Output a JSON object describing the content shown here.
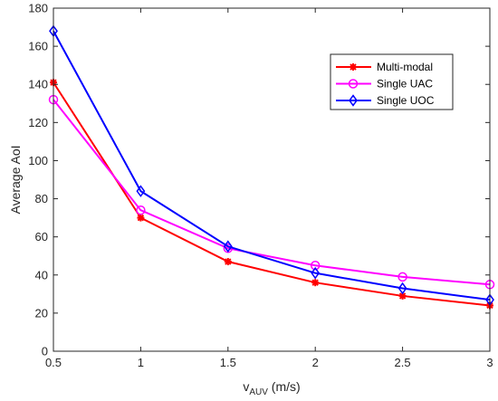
{
  "chart_data": {
    "type": "line",
    "xlabel_main": "v",
    "xlabel_sub": "AUV",
    "xlabel_unit": " (m/s)",
    "ylabel": "Average AoI",
    "xlim": [
      0.5,
      3
    ],
    "ylim": [
      0,
      180
    ],
    "x_ticks": [
      "0.5",
      "1",
      "1.5",
      "2",
      "2.5",
      "3"
    ],
    "y_ticks": [
      "0",
      "20",
      "40",
      "60",
      "80",
      "100",
      "120",
      "140",
      "160",
      "180"
    ],
    "grid": false,
    "legend_position": "top-right",
    "x": [
      0.5,
      1,
      1.5,
      2,
      2.5,
      3
    ],
    "series": [
      {
        "name": "Multi-modal",
        "color": "#ff0000",
        "marker": "asterisk",
        "values": [
          141,
          70,
          47,
          36,
          29,
          24
        ]
      },
      {
        "name": "Single UAC",
        "color": "#ff00ff",
        "marker": "circle",
        "values": [
          132,
          74,
          54,
          45,
          39,
          35
        ]
      },
      {
        "name": "Single UOC",
        "color": "#0000ff",
        "marker": "diamond",
        "values": [
          168,
          84,
          55,
          41,
          33,
          27
        ]
      }
    ]
  }
}
